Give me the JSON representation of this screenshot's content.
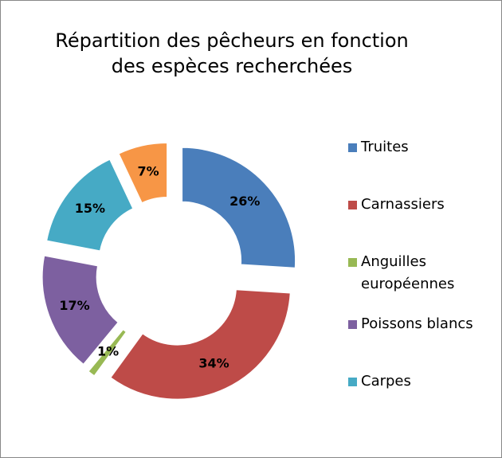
{
  "chart_data": {
    "type": "donut",
    "title": "Répartition des pêcheurs en fonction des espèces recherchées",
    "categories": [
      "Truites",
      "Carnassiers",
      "Anguilles européennes",
      "Poissons blancs",
      "Carpes",
      null
    ],
    "values": [
      26,
      34,
      1,
      17,
      15,
      7
    ],
    "value_labels": [
      "26%",
      "34%",
      "1%",
      "17%",
      "15%",
      "7%"
    ],
    "colors": [
      "#4a7ebb",
      "#be4b48",
      "#98b954",
      "#7d60a0",
      "#46aac5",
      "#f79646"
    ],
    "legend": "right"
  }
}
